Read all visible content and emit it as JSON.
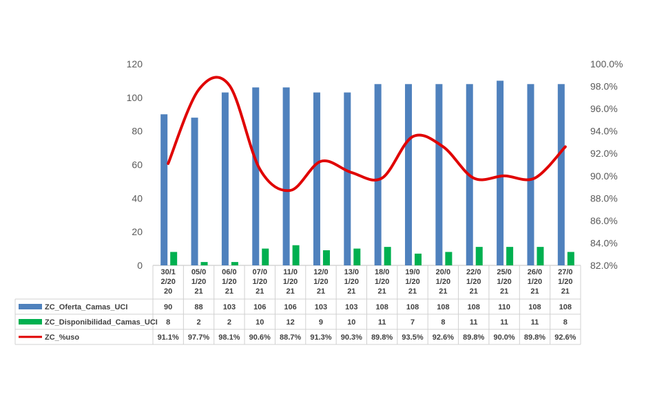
{
  "chart_data": {
    "type": "bar",
    "categories": [
      "30/1 2/20 20",
      "05/0 1/20 21",
      "06/0 1/20 21",
      "07/0 1/20 21",
      "11/0 1/20 21",
      "12/0 1/20 21",
      "13/0 1/20 21",
      "18/0 1/20 21",
      "19/0 1/20 21",
      "20/0 1/20 21",
      "22/0 1/20 21",
      "25/0 1/20 21",
      "26/0 1/20 21",
      "27/0 1/20 21"
    ],
    "series": [
      {
        "name": "ZC_Oferta_Camas_UCI",
        "type": "bar",
        "axis": "left",
        "color": "#4f81bd",
        "values": [
          90,
          88,
          103,
          106,
          106,
          103,
          103,
          108,
          108,
          108,
          108,
          110,
          108,
          108
        ],
        "labels": [
          "90",
          "88",
          "103",
          "106",
          "106",
          "103",
          "103",
          "108",
          "108",
          "108",
          "108",
          "110",
          "108",
          "108"
        ]
      },
      {
        "name": "ZC_Disponibilidad_Camas_UCI",
        "type": "bar",
        "axis": "left",
        "color": "#00b050",
        "values": [
          8,
          2,
          2,
          10,
          12,
          9,
          10,
          11,
          7,
          8,
          11,
          11,
          11,
          8
        ],
        "labels": [
          "8",
          "2",
          "2",
          "10",
          "12",
          "9",
          "10",
          "11",
          "7",
          "8",
          "11",
          "11",
          "11",
          "8"
        ]
      },
      {
        "name": "ZC_%uso",
        "type": "line",
        "axis": "right",
        "color": "#e00000",
        "values": [
          91.1,
          97.7,
          98.1,
          90.6,
          88.7,
          91.3,
          90.3,
          89.8,
          93.5,
          92.6,
          89.8,
          90.0,
          89.8,
          92.6
        ],
        "labels": [
          "91.1%",
          "97.7%",
          "98.1%",
          "90.6%",
          "88.7%",
          "91.3%",
          "90.3%",
          "89.8%",
          "93.5%",
          "92.6%",
          "89.8%",
          "90.0%",
          "89.8%",
          "92.6%"
        ]
      }
    ],
    "y_left": {
      "min": 0,
      "max": 120,
      "ticks": [
        0,
        20,
        40,
        60,
        80,
        100,
        120
      ],
      "tick_labels": [
        "0",
        "20",
        "40",
        "60",
        "80",
        "100",
        "120"
      ]
    },
    "y_right": {
      "min": 82.0,
      "max": 100.0,
      "ticks": [
        82,
        84,
        86,
        88,
        90,
        92,
        94,
        96,
        98,
        100
      ],
      "tick_labels": [
        "82.0%",
        "84.0%",
        "86.0%",
        "88.0%",
        "90.0%",
        "92.0%",
        "94.0%",
        "96.0%",
        "98.0%",
        "100.0%"
      ]
    },
    "grid": false,
    "legend": "data-table",
    "title": "",
    "xlabel": "",
    "ylabel": ""
  }
}
